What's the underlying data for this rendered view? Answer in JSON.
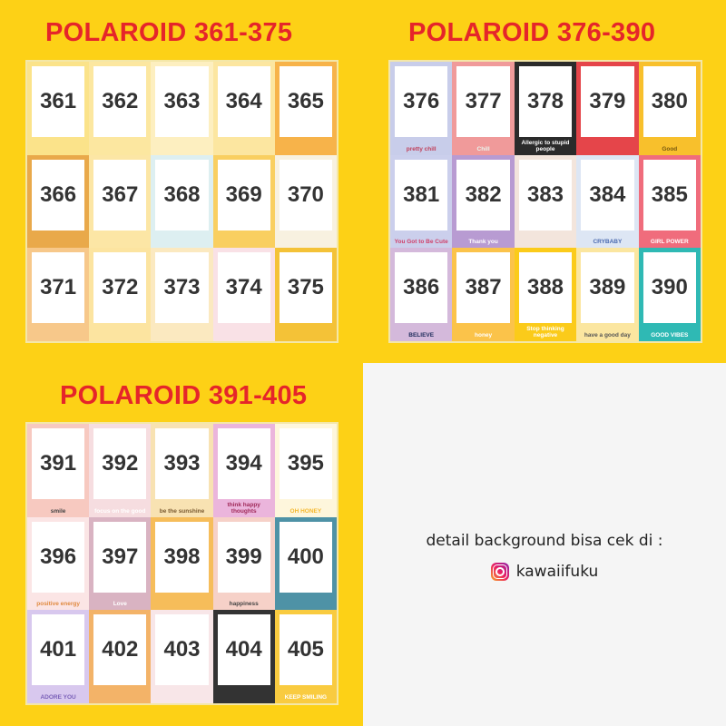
{
  "sections": [
    {
      "title": "POLAROID 361-375",
      "cards": [
        {
          "n": "361",
          "bg": "#FBE38A",
          "cap": ""
        },
        {
          "n": "362",
          "bg": "#FCE7A0",
          "cap": ""
        },
        {
          "n": "363",
          "bg": "#FDEFC0",
          "cap": ""
        },
        {
          "n": "364",
          "bg": "#FCE6A0",
          "cap": ""
        },
        {
          "n": "365",
          "bg": "#F7B34A",
          "cap": ""
        },
        {
          "n": "366",
          "bg": "#E9A94A",
          "cap": ""
        },
        {
          "n": "367",
          "bg": "#FCE6A5",
          "cap": ""
        },
        {
          "n": "368",
          "bg": "#DDEFF1",
          "cap": ""
        },
        {
          "n": "369",
          "bg": "#F9CF60",
          "cap": ""
        },
        {
          "n": "370",
          "bg": "#F8F1E0",
          "cap": ""
        },
        {
          "n": "371",
          "bg": "#F7C88A",
          "cap": ""
        },
        {
          "n": "372",
          "bg": "#FCE4A0",
          "cap": ""
        },
        {
          "n": "373",
          "bg": "#FBE9C0",
          "cap": ""
        },
        {
          "n": "374",
          "bg": "#F9E1E6",
          "cap": ""
        },
        {
          "n": "375",
          "bg": "#F4C237",
          "cap": ""
        }
      ]
    },
    {
      "title": "POLAROID 376-390",
      "cards": [
        {
          "n": "376",
          "bg": "#C8CDEA",
          "cap": "pretty chill",
          "cc": "#c0405a"
        },
        {
          "n": "377",
          "bg": "#F09A9A",
          "cap": "Chill",
          "cc": "#e8f6ef"
        },
        {
          "n": "378",
          "bg": "#2B2B2B",
          "cap": "Allergic to stupid people",
          "cc": "#ffffff"
        },
        {
          "n": "379",
          "bg": "#E5454A",
          "cap": "",
          "cc": "#fff"
        },
        {
          "n": "380",
          "bg": "#F8C02C",
          "cap": "Good",
          "cc": "#7a5a10"
        },
        {
          "n": "381",
          "bg": "#CBCFEC",
          "cap": "You Got to Be Cute",
          "cc": "#d0406a"
        },
        {
          "n": "382",
          "bg": "#B89BD2",
          "cap": "Thank you",
          "cc": "#ffffff"
        },
        {
          "n": "383",
          "bg": "#F3E5DC",
          "cap": "",
          "cc": "#c05030"
        },
        {
          "n": "384",
          "bg": "#DDE6F4",
          "cap": "CRYBABY",
          "cc": "#4a6ab0"
        },
        {
          "n": "385",
          "bg": "#F06C7C",
          "cap": "GIRL POWER",
          "cc": "#ffffff"
        },
        {
          "n": "386",
          "bg": "#D4B9DB",
          "cap": "BELIEVE",
          "cc": "#1c2a5a"
        },
        {
          "n": "387",
          "bg": "#FBC34A",
          "cap": "honey",
          "cc": "#ffffff"
        },
        {
          "n": "388",
          "bg": "#FBCB1A",
          "cap": "Stop thinking negative",
          "cc": "#ffffff"
        },
        {
          "n": "389",
          "bg": "#FBE6A0",
          "cap": "have a good day",
          "cc": "#555"
        },
        {
          "n": "390",
          "bg": "#2FB9B4",
          "cap": "GOOD VIBES",
          "cc": "#ffffff"
        }
      ]
    },
    {
      "title": "POLAROID 391-405",
      "cards": [
        {
          "n": "391",
          "bg": "#F7C9C0",
          "cap": "smile",
          "cc": "#444"
        },
        {
          "n": "392",
          "bg": "#F6DDE0",
          "cap": "focus on the good",
          "cc": "#fff"
        },
        {
          "n": "393",
          "bg": "#F8E2B2",
          "cap": "be the sunshine",
          "cc": "#7a5a30"
        },
        {
          "n": "394",
          "bg": "#EBB5DC",
          "cap": "think happy thoughts",
          "cc": "#a02a5a"
        },
        {
          "n": "395",
          "bg": "#FEF6DC",
          "cap": "OH HONEY",
          "cc": "#F5B82E"
        },
        {
          "n": "396",
          "bg": "#FBE5E5",
          "cap": "positive energy",
          "cc": "#e08a40"
        },
        {
          "n": "397",
          "bg": "#D9B3C2",
          "cap": "Love",
          "cc": "#fff"
        },
        {
          "n": "398",
          "bg": "#F6BD5A",
          "cap": "",
          "cc": "#fff"
        },
        {
          "n": "399",
          "bg": "#F6D1C8",
          "cap": "happiness",
          "cc": "#444"
        },
        {
          "n": "400",
          "bg": "#4E92A6",
          "cap": "",
          "cc": "#fff"
        },
        {
          "n": "401",
          "bg": "#D8C8EE",
          "cap": "ADORE YOU",
          "cc": "#7a60b8"
        },
        {
          "n": "402",
          "bg": "#F3B368",
          "cap": "",
          "cc": "#fff"
        },
        {
          "n": "403",
          "bg": "#F8E6E8",
          "cap": "",
          "cc": "#444"
        },
        {
          "n": "404",
          "bg": "#333333",
          "cap": "",
          "cc": "#fff"
        },
        {
          "n": "405",
          "bg": "#F9CB40",
          "cap": "KEEP SMILING",
          "cc": "#fff"
        }
      ]
    }
  ],
  "info": {
    "detail": "detail background bisa cek di :",
    "instagram_handle": "kawaiifuku"
  },
  "colors": {
    "background": "#FDD116",
    "title": "#E5252A",
    "panel": "#F5F5F5"
  }
}
